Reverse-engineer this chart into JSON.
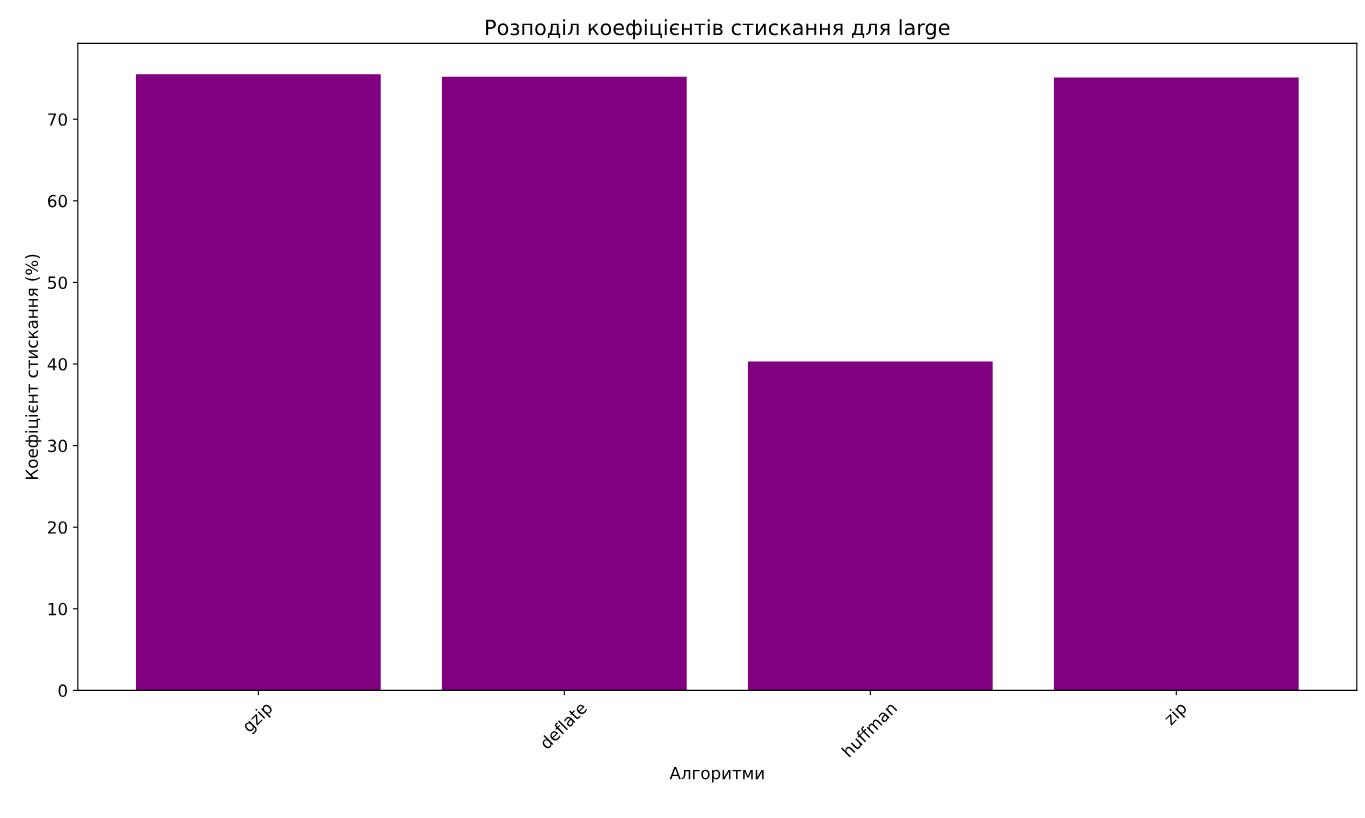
{
  "chart_data": {
    "type": "bar",
    "title": "Розподіл коефіцієнтів стискання для large",
    "xlabel": "Алгоритми",
    "ylabel": "Коефіцієнт стискання (%)",
    "categories": [
      "gzip",
      "deflate",
      "huffman",
      "zip"
    ],
    "values": [
      75.5,
      75.2,
      40.3,
      75.1
    ],
    "color": "#800080",
    "ylim": [
      0,
      79.3
    ],
    "yticks": [
      0,
      10,
      20,
      30,
      40,
      50,
      60,
      70
    ],
    "grid": false,
    "legend": false
  }
}
